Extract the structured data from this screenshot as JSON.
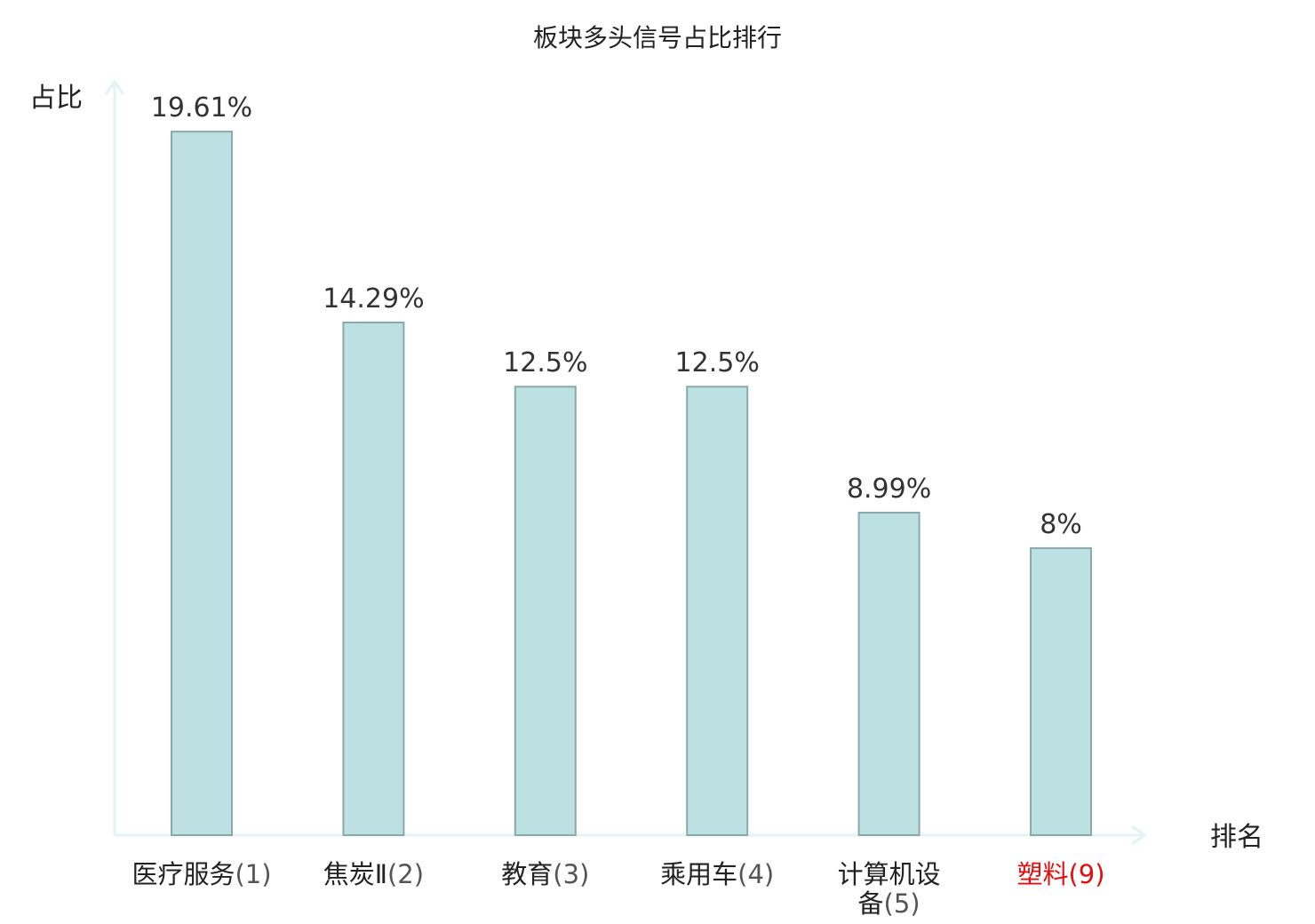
{
  "chart_data": {
    "type": "bar",
    "title": "板块多头信号占比排行",
    "ylabel": "占比",
    "xlabel": "排名",
    "ylim": [
      0,
      21
    ],
    "grid": false,
    "categories": [
      {
        "name": "医疗服务",
        "rank": "(1)",
        "highlight": false
      },
      {
        "name": "焦炭Ⅱ",
        "rank": "(2)",
        "highlight": false
      },
      {
        "name": "教育",
        "rank": "(3)",
        "highlight": false
      },
      {
        "name": "乘用车",
        "rank": "(4)",
        "highlight": false
      },
      {
        "name": "计算机设备",
        "rank": "(5)",
        "highlight": false
      },
      {
        "name": "塑料",
        "rank": "(9)",
        "highlight": true
      }
    ],
    "values": [
      19.61,
      14.29,
      12.5,
      12.5,
      8.99,
      8
    ],
    "value_labels": [
      "19.61%",
      "14.29%",
      "12.5%",
      "12.5%",
      "8.99%",
      "8%"
    ]
  },
  "colors": {
    "bar_fill": "#bde0e2",
    "bar_stroke": "#8aa9ab",
    "axis": "#e2f3f1",
    "label_text": "#222222",
    "highlight_text": "#e01010",
    "rank_text": "#555555"
  }
}
